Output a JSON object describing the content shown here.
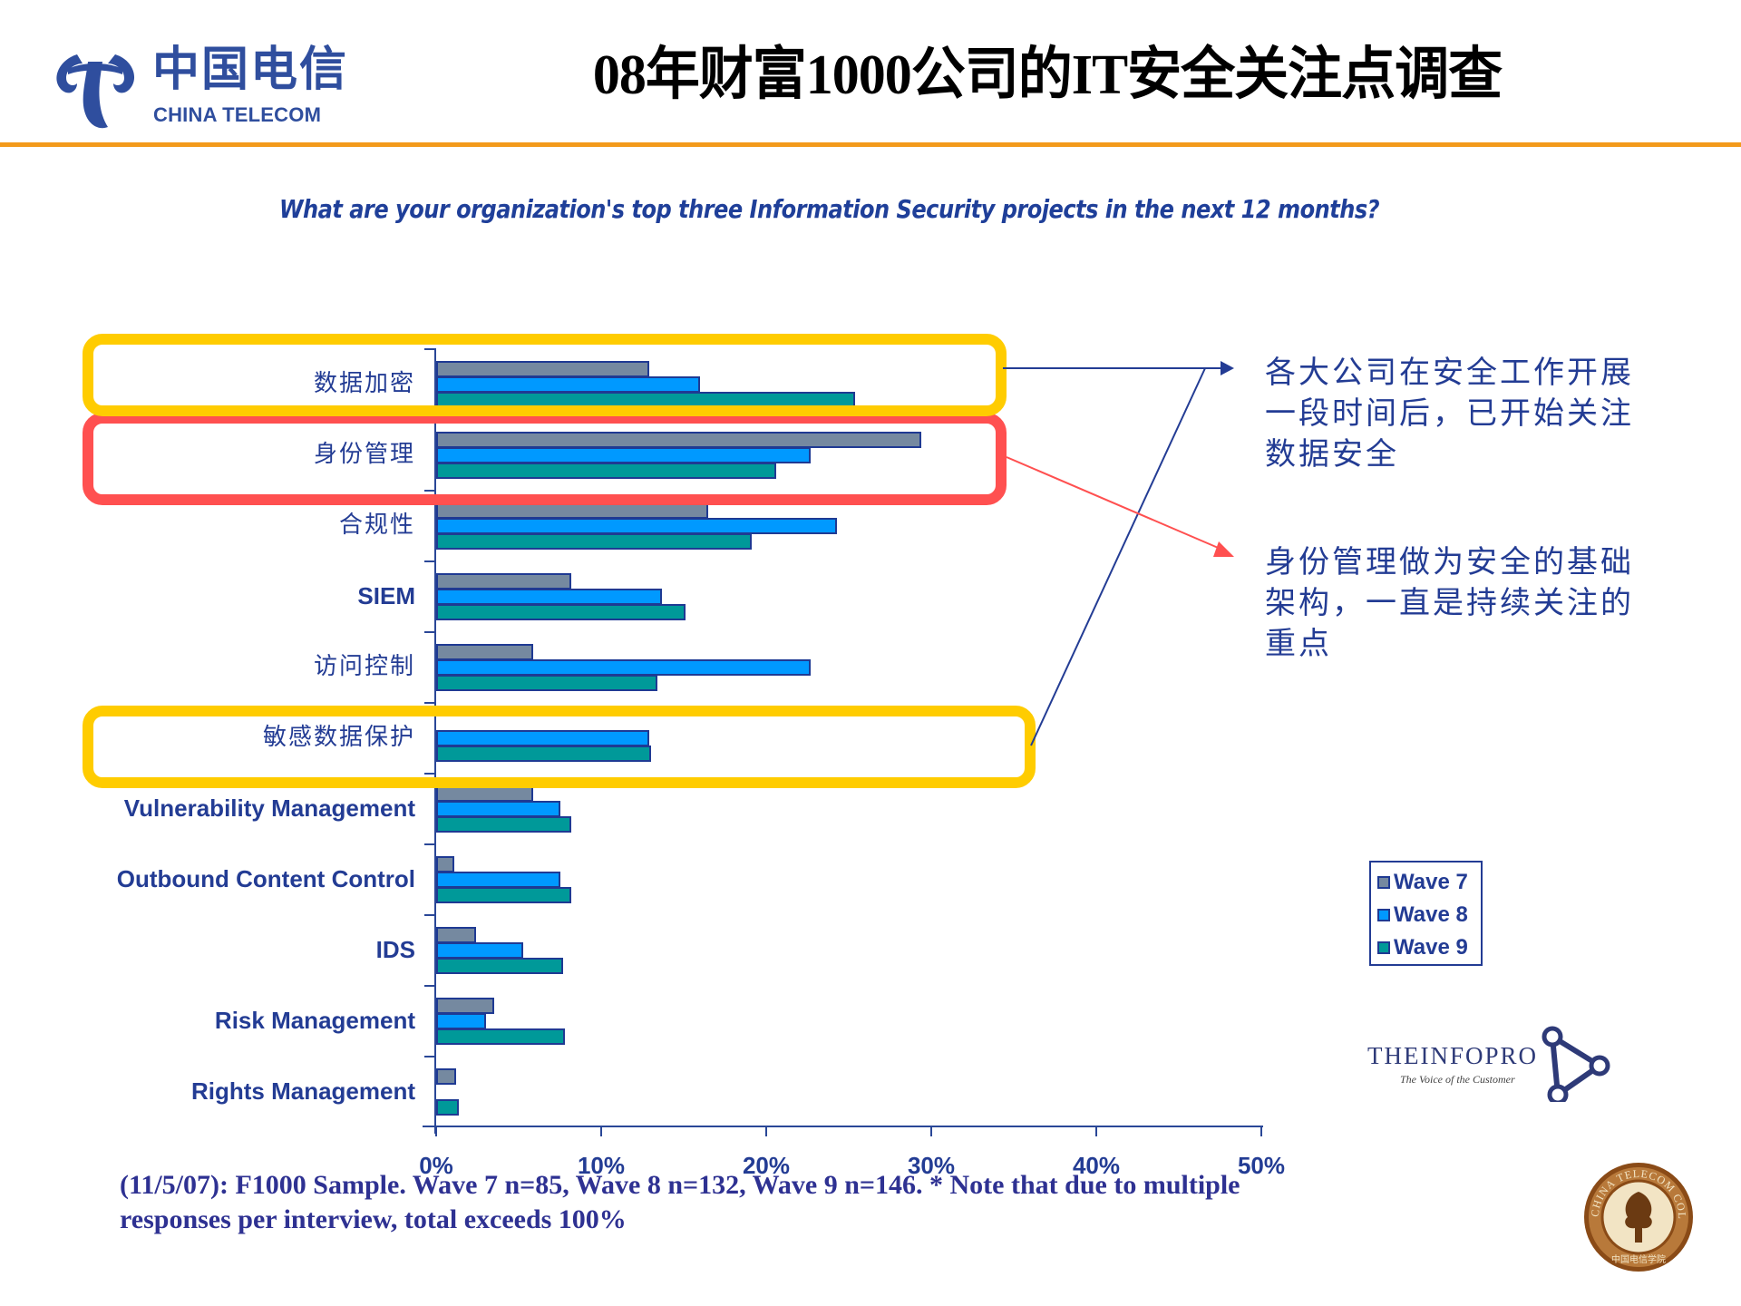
{
  "header": {
    "logo_cn": "中国电信",
    "logo_en": "CHINA TELECOM",
    "title": "08年财富1000公司的IT安全关注点调查",
    "rule_color": "#F39A1B"
  },
  "subtitle": "What are your organization's top three Information Security projects in the next 12 months?",
  "chart_data": {
    "type": "bar",
    "orientation": "horizontal",
    "title": "What are your organization's top three Information Security projects in the next 12 months?",
    "xlabel": "",
    "ylabel": "",
    "xlim": [
      0,
      50
    ],
    "x_ticks": [
      "0%",
      "10%",
      "20%",
      "30%",
      "40%",
      "50%"
    ],
    "grid": false,
    "legend_position": "right",
    "categories": [
      "数据加密",
      "身份管理",
      "合规性",
      "SIEM",
      "访问控制",
      "敏感数据保护",
      "Vulnerability Management",
      "Outbound Content Control",
      "IDS",
      "Risk Management",
      "Rights Management"
    ],
    "series": [
      {
        "name": "Wave 7",
        "color": "#7589A0",
        "values": [
          12.9,
          29.4,
          16.5,
          8.2,
          5.9,
          0,
          5.9,
          1.1,
          2.4,
          3.5,
          1.2
        ]
      },
      {
        "name": "Wave 8",
        "color": "#0099FF",
        "values": [
          16.0,
          22.7,
          24.3,
          13.7,
          22.7,
          12.9,
          7.5,
          7.5,
          5.3,
          3.0,
          0
        ]
      },
      {
        "name": "Wave 9",
        "color": "#009999",
        "values": [
          25.4,
          20.6,
          19.1,
          15.1,
          13.4,
          13.0,
          8.2,
          8.2,
          7.7,
          7.8,
          1.4
        ]
      }
    ],
    "annotations": [
      {
        "highlight": "数据加密",
        "box_color": "#FFCC00",
        "text": "各大公司在安全工作开展一段时间后，已开始关注数据安全"
      },
      {
        "highlight": "身份管理",
        "box_color": "#FF5050",
        "text": "身份管理做为安全的基础架构，一直是持续关注的重点"
      },
      {
        "highlight": "敏感数据保护",
        "box_color": "#FFCC00",
        "text": "各大公司在安全工作开展一段时间后，已开始关注数据安全"
      }
    ]
  },
  "legend": [
    {
      "label": "Wave 7",
      "color": "#7589A0"
    },
    {
      "label": "Wave 8",
      "color": "#0099FF"
    },
    {
      "label": "Wave 9",
      "color": "#009999"
    }
  ],
  "callouts": {
    "data_security": [
      "各大公司在安全工作开展",
      "一段时间后，已开始关注",
      "数据安全"
    ],
    "identity": [
      "身份管理做为安全的基础",
      "架构，一直是持续关注的",
      "重点"
    ]
  },
  "footnote": {
    "line1": "(11/5/07): F1000 Sample.  Wave 7 n=85, Wave 8 n=132, Wave 9 n=146.  * Note that due to multiple",
    "line2": "responses per interview, total exceeds 100%"
  },
  "infopro": {
    "name": "THEINFOPRO",
    "tagline": "The Voice of the Customer"
  },
  "seal": {
    "ring_text": "CHINA TELECOM COLLEGE",
    "bottom_text": "中国电信学院"
  }
}
